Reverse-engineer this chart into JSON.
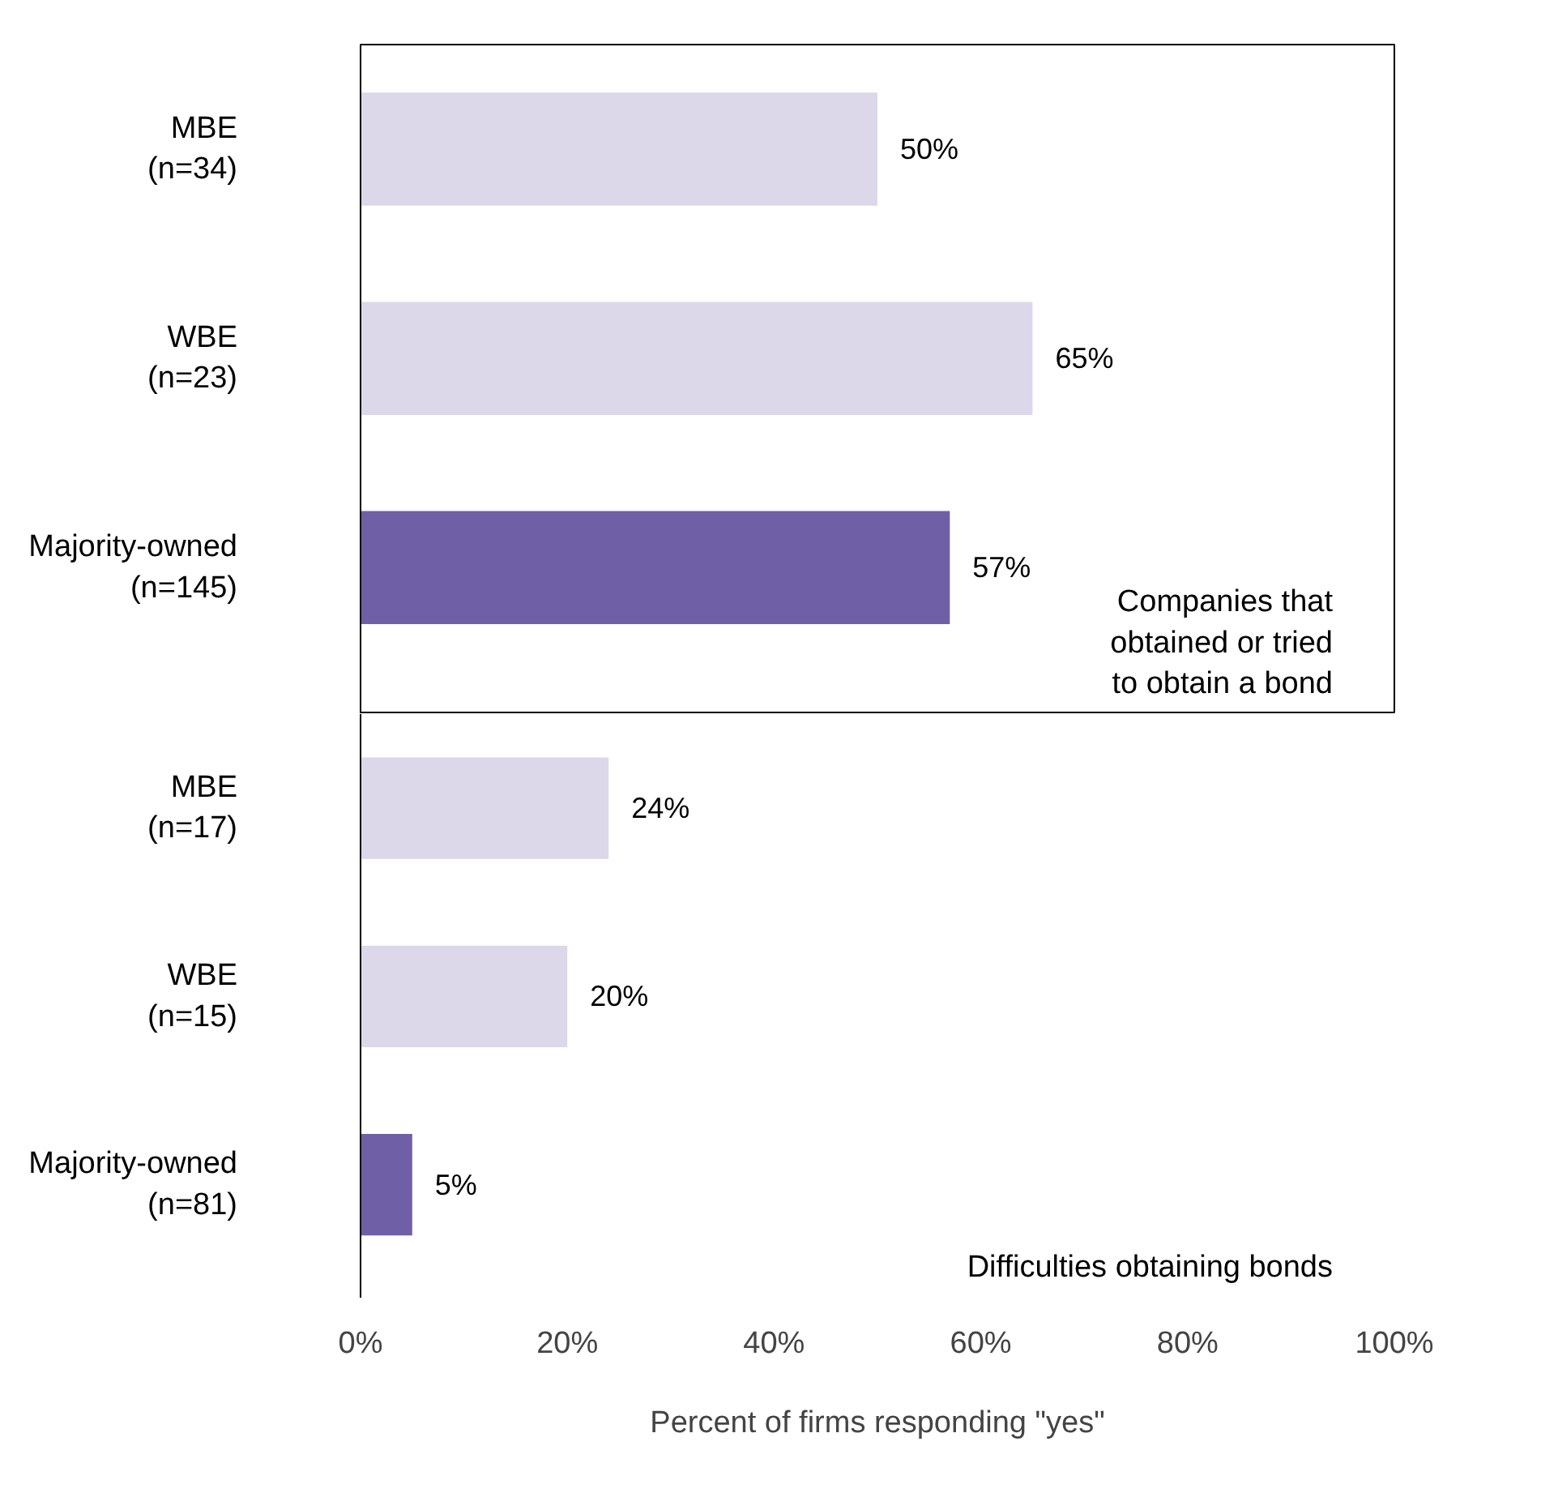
{
  "chart_data": [
    {
      "type": "bar",
      "orientation": "horizontal",
      "categories": [
        "MBE\n(n=34)",
        "WBE\n(n=23)",
        "Majority-owned\n(n=145)"
      ],
      "values": [
        50,
        65,
        57
      ],
      "colors": [
        "#dcd8ea",
        "#dcd8ea",
        "#6f5fa6"
      ],
      "value_labels": [
        "50%",
        "65%",
        "57%"
      ],
      "xlim": [
        0,
        100
      ],
      "tick_labels": "y",
      "annotations": [
        "Companies that\nobtained or tried\nto obtain a bond"
      ]
    },
    {
      "type": "bar",
      "orientation": "horizontal",
      "categories": [
        "MBE\n(n=17)",
        "WBE\n(n=15)",
        "Majority-owned\n(n=81)"
      ],
      "values": [
        24,
        20,
        5
      ],
      "colors": [
        "#dcd8ea",
        "#dcd8ea",
        "#6f5fa6"
      ],
      "value_labels": [
        "24%",
        "20%",
        "5%"
      ],
      "xlim": [
        0,
        100
      ],
      "xticks": [
        {
          "value": 0,
          "label": "0%"
        },
        {
          "value": 20,
          "label": "20%"
        },
        {
          "value": 40,
          "label": "40%"
        },
        {
          "value": 60,
          "label": "60%"
        },
        {
          "value": 80,
          "label": "80%"
        },
        {
          "value": 100,
          "label": "100%"
        }
      ],
      "xlabel": "Percent of firms responding \"yes\"",
      "annotations": [
        "Difficulties obtaining bonds"
      ]
    }
  ]
}
